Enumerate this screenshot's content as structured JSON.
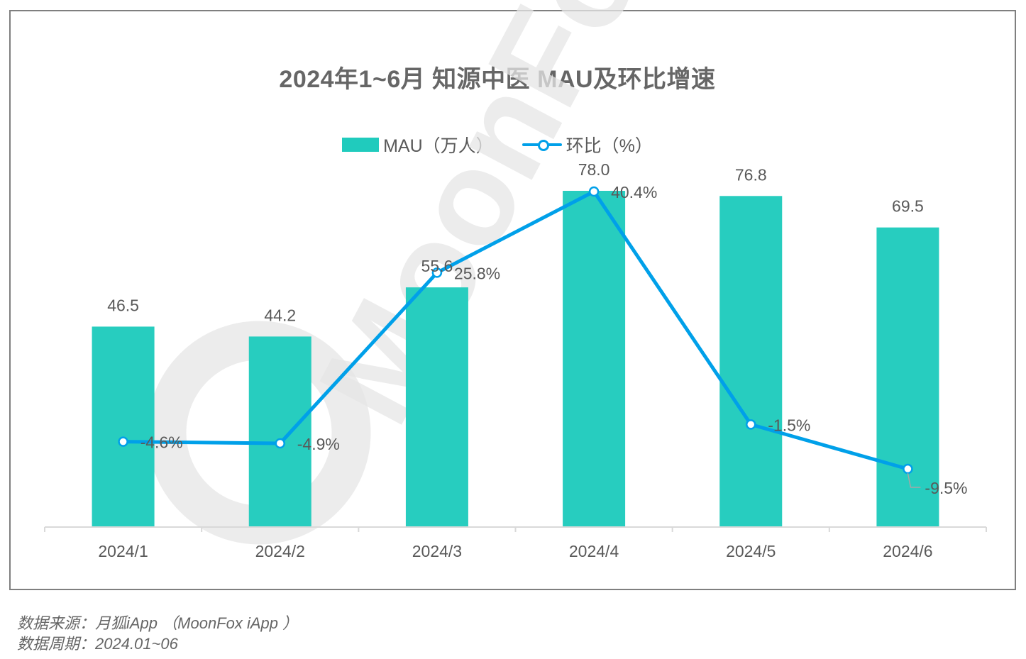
{
  "title": "2024年1~6月 知源中医 MAU及环比增速",
  "legend": {
    "bar_label": "MAU（万人）",
    "line_label": "环比（%）"
  },
  "colors": {
    "bar": "#20cbbd",
    "line": "#00a0e9",
    "text": "#595959",
    "title": "#666666",
    "axis": "#d9d9d9"
  },
  "chart_data": {
    "type": "bar+line",
    "title": "2024年1~6月 知源中医 MAU及环比增速",
    "categories": [
      "2024/1",
      "2024/2",
      "2024/3",
      "2024/4",
      "2024/5",
      "2024/6"
    ],
    "series": [
      {
        "name": "MAU（万人）",
        "type": "bar",
        "values": [
          46.5,
          44.2,
          55.6,
          78.0,
          76.8,
          69.5
        ],
        "labels": [
          "46.5",
          "44.2",
          "55.6",
          "78.0",
          "76.8",
          "69.5"
        ]
      },
      {
        "name": "环比（%）",
        "type": "line",
        "values": [
          -4.6,
          -4.9,
          25.8,
          40.4,
          -1.5,
          -9.5
        ],
        "labels": [
          "-4.6%",
          "-4.9%",
          "25.8%",
          "40.4%",
          "-1.5%",
          "-9.5%"
        ]
      }
    ],
    "xlabel": "",
    "ylabel": "",
    "legend_position": "top",
    "grid": false,
    "watermark": "MoonFox"
  },
  "footer": {
    "source": "数据来源：月狐iApp （MoonFox iApp ）",
    "period": "数据周期：2024.01~06"
  }
}
